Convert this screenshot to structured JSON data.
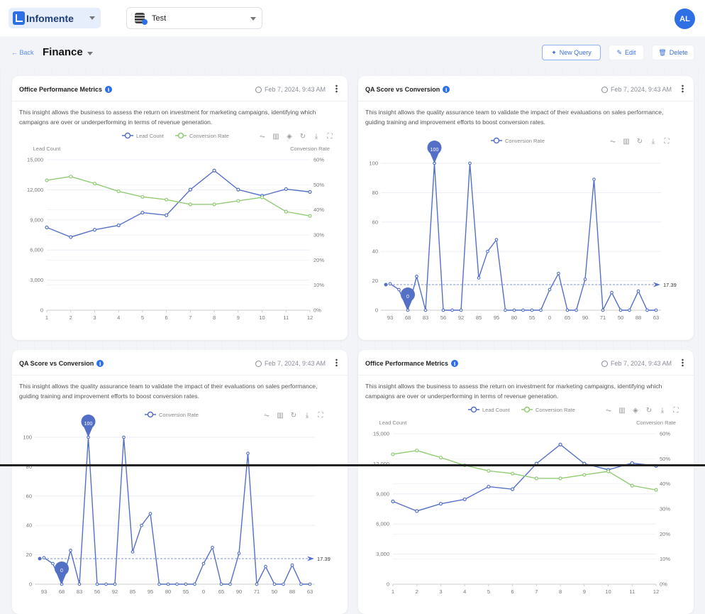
{
  "header": {
    "brand": "Infomente",
    "database": "Test",
    "avatar": "AL"
  },
  "page": {
    "back": "← Back",
    "title": "Finance",
    "buttons": {
      "new_query": "New Query",
      "edit": "Edit",
      "delete": "Delete"
    }
  },
  "colors": {
    "accent": "#2f6fe4",
    "series_blue": "#5470c6",
    "series_green": "#91cc75"
  },
  "cards": [
    {
      "title": "Office Performance Metrics",
      "timestamp": "Feb 7, 2024, 9:43 AM",
      "description": "This insight allows the business to assess the return on investment for marketing campaigns, identifying which campaigns are over or underperforming in terms of revenue generation.",
      "chart": 0
    },
    {
      "title": "QA Score vs Conversion",
      "timestamp": "Feb 7, 2024, 9:43 AM",
      "description": "This insight allows the quality assurance team to validate the impact of their evaluations on sales performance, guiding training and improvement efforts to boost conversion rates.",
      "chart": 1
    },
    {
      "title": "QA Score vs Conversion",
      "timestamp": "Feb 7, 2024, 9:43 AM",
      "description": "This insight allows the quality assurance team to validate the impact of their evaluations on sales performance, guiding training and improvement efforts to boost conversion rates.",
      "chart": 1
    },
    {
      "title": "Office Performance Metrics",
      "timestamp": "Feb 7, 2024, 9:43 AM",
      "description": "This insight allows the business to assess the return on investment for marketing campaigns, identifying which campaigns are over or underperforming in terms of revenue generation.",
      "chart": 0
    }
  ],
  "toolbar_icons": [
    "line-chart-icon",
    "bar-chart-icon",
    "stack-icon",
    "restore-icon",
    "download-icon",
    "fullscreen-icon"
  ],
  "chart_data": [
    {
      "type": "line",
      "categories": [
        "1",
        "2",
        "3",
        "4",
        "5",
        "6",
        "7",
        "8",
        "9",
        "10",
        "11",
        "12"
      ],
      "ylabel": "Lead Count",
      "y2label": "Conversion Rate",
      "ylim": [
        0,
        15000
      ],
      "y2lim": [
        0,
        60
      ],
      "yticks": [
        "0",
        "3,000",
        "6,000",
        "9,000",
        "12,000",
        "15,000"
      ],
      "y2ticks": [
        "0%",
        "10%",
        "20%",
        "30%",
        "40%",
        "50%",
        "60%"
      ],
      "legend": "top-center",
      "grid": true,
      "series": [
        {
          "name": "Lead Count",
          "axis": "left",
          "color": "#5470c6",
          "values": [
            8250,
            7290,
            8015,
            8460,
            9725,
            9470,
            12020,
            13920,
            12020,
            11410,
            12070,
            11790
          ]
        },
        {
          "name": "Conversion Rate",
          "axis": "right",
          "color": "#91cc75",
          "values": [
            51.8,
            53.3,
            50.5,
            47.4,
            45.2,
            44.1,
            42.2,
            42.2,
            43.6,
            45,
            39.3,
            37.6
          ]
        }
      ]
    },
    {
      "type": "line",
      "x_labels_shown": [
        "93",
        "68",
        "83",
        "56",
        "92",
        "85",
        "95",
        "80",
        "55",
        "0",
        "65",
        "90",
        "71",
        "50",
        "88",
        "63"
      ],
      "ylim": [
        0,
        100
      ],
      "yticks": [
        "0",
        "20",
        "40",
        "60",
        "80",
        "100"
      ],
      "legend": "top-center",
      "grid": true,
      "series": [
        {
          "name": "Conversion  Rate",
          "color": "#5470c6",
          "values": [
            18,
            14,
            0,
            23,
            0,
            100,
            0,
            0,
            0,
            100,
            22,
            40,
            48,
            0,
            0,
            0,
            0,
            0,
            14,
            25,
            0,
            0,
            21,
            89,
            0,
            12,
            0,
            0,
            13,
            0,
            0
          ]
        }
      ],
      "mark_points": [
        {
          "label": "100",
          "type": "max"
        },
        {
          "label": "0",
          "type": "min"
        }
      ],
      "mark_line": {
        "label": "17.39",
        "type": "average",
        "value": 17.39
      }
    }
  ]
}
